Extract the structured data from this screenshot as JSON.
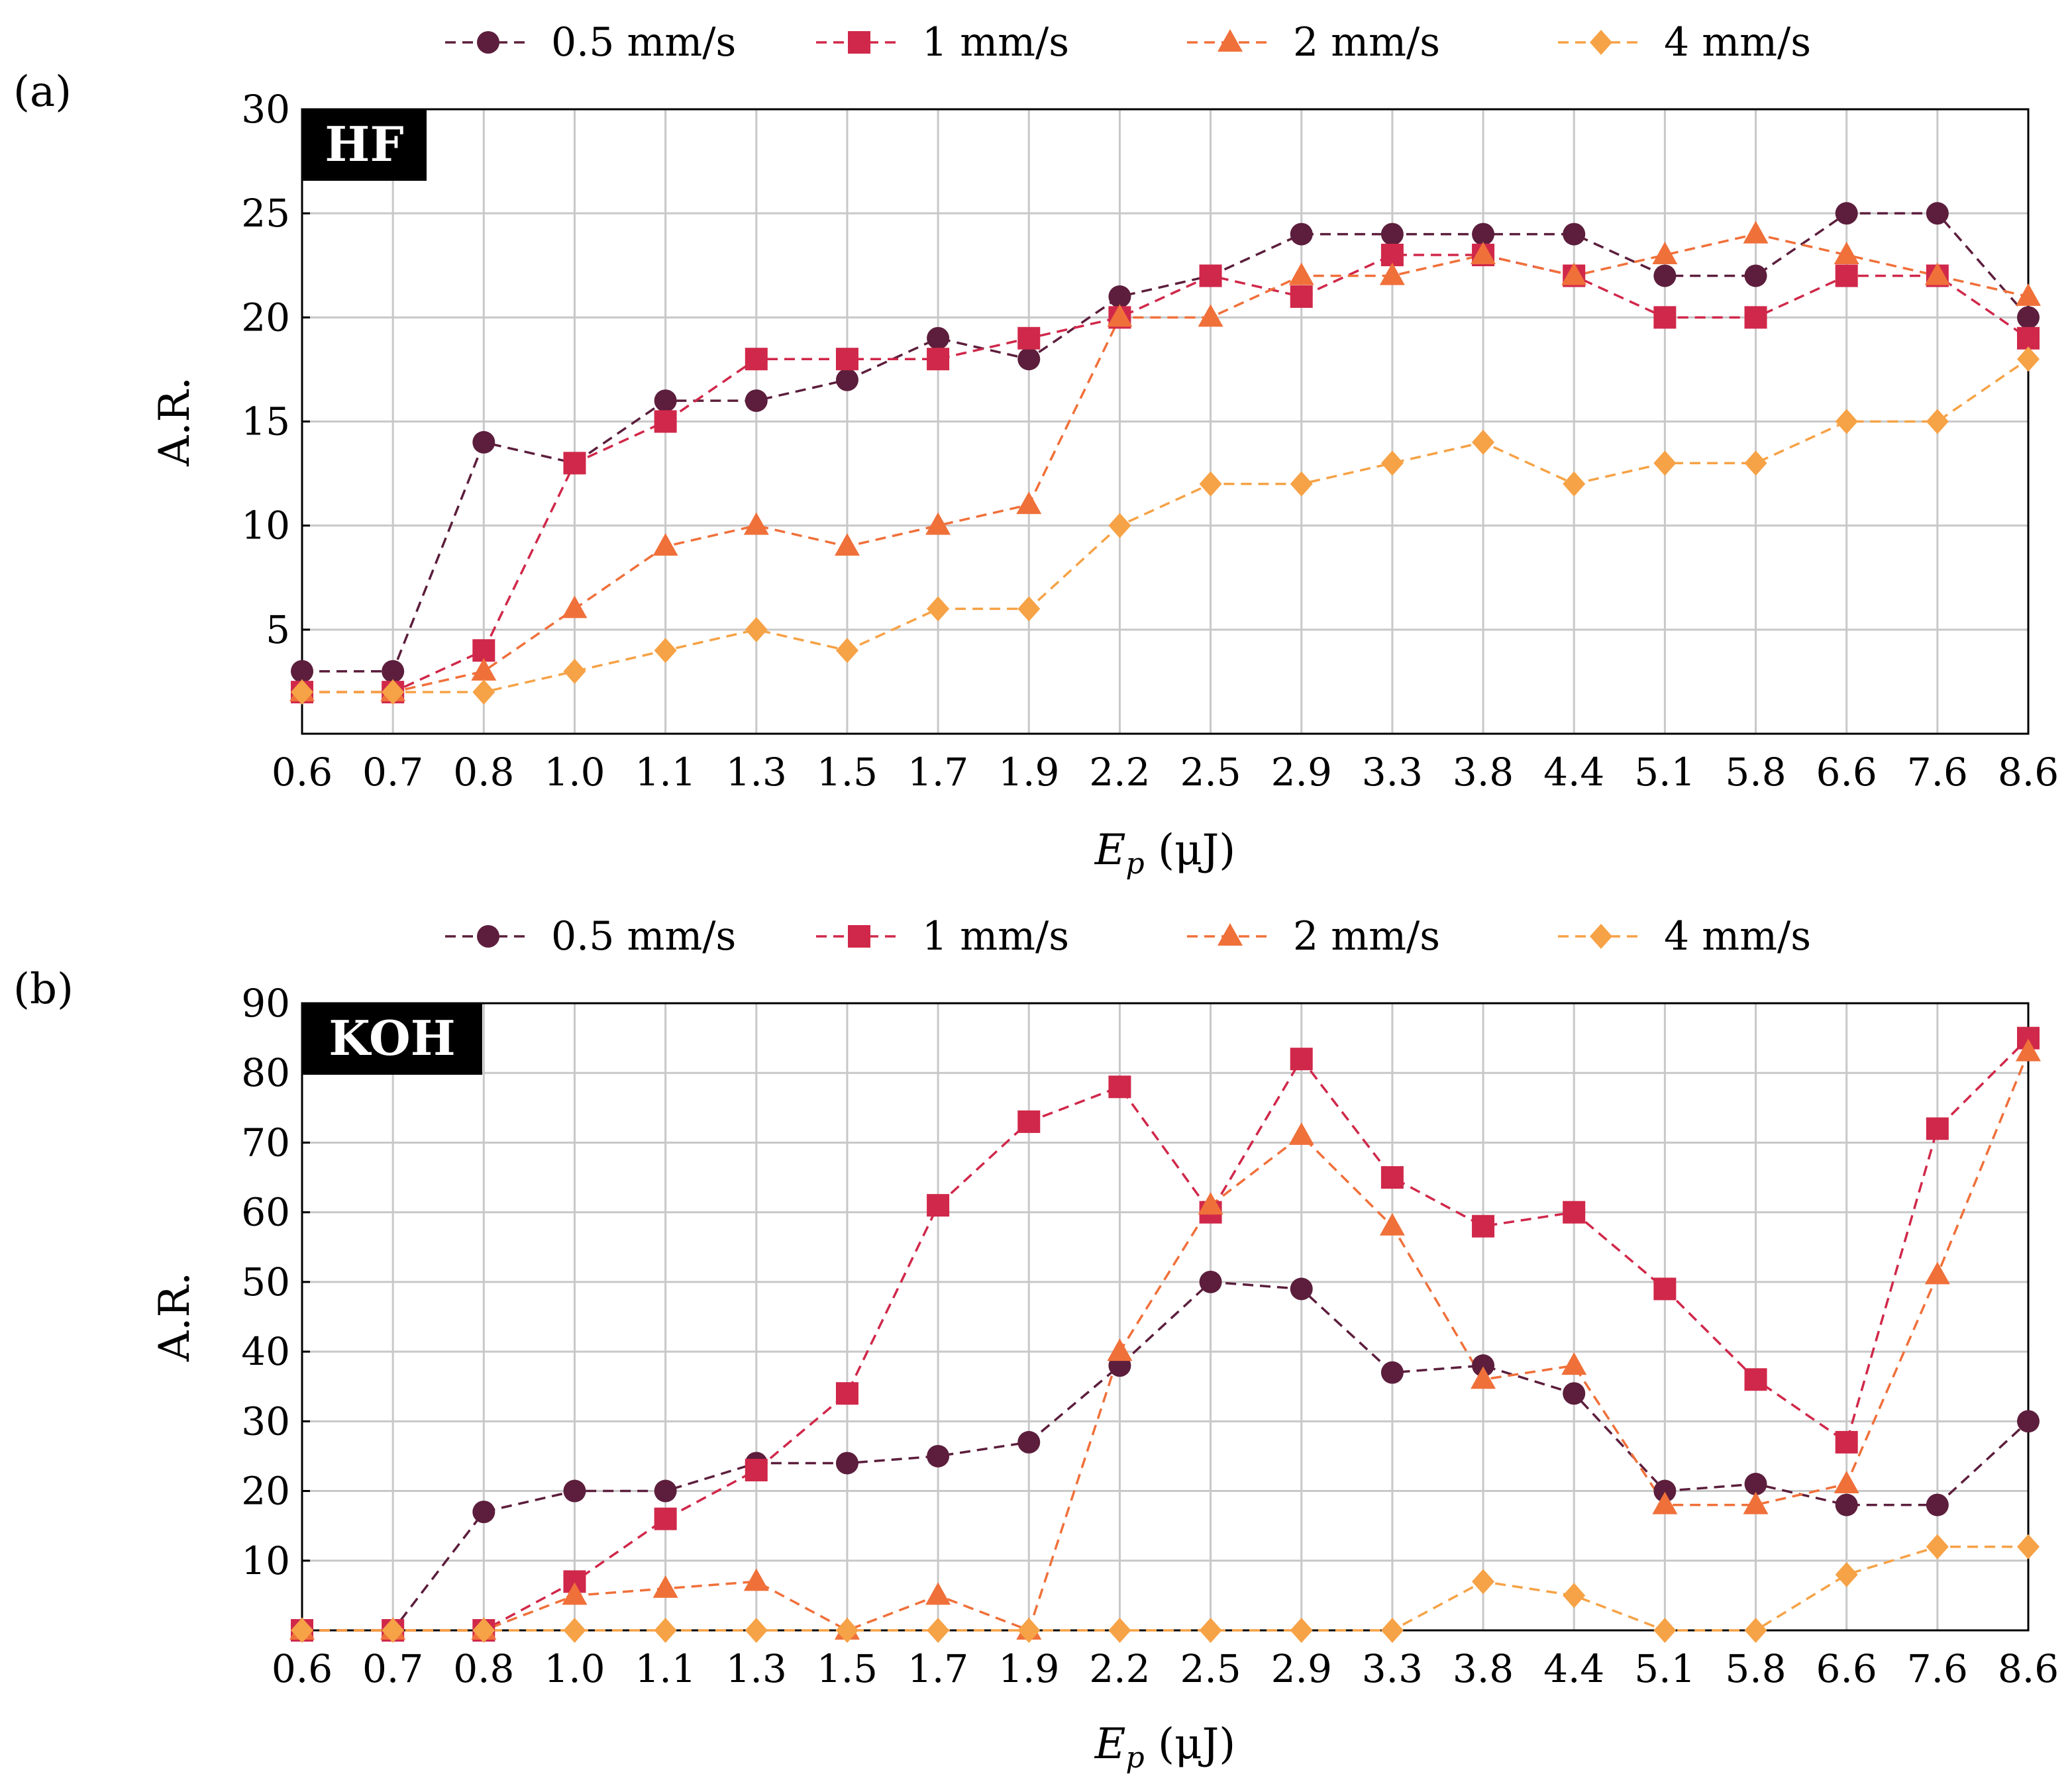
{
  "chart_data": [
    {
      "type": "line",
      "panel_label": "(a)",
      "tag": "HF",
      "xlabel": "E_p (μJ)",
      "xlabel_main": "E",
      "xlabel_sub": "p",
      "xlabel_unit": " (μJ)",
      "ylabel": "A.R.",
      "categories": [
        "0.6",
        "0.7",
        "0.8",
        "1.0",
        "1.1",
        "1.3",
        "1.5",
        "1.7",
        "1.9",
        "2.2",
        "2.5",
        "2.9",
        "3.3",
        "3.8",
        "4.4",
        "5.1",
        "5.8",
        "6.6",
        "7.6",
        "8.6"
      ],
      "ylim": [
        0,
        30
      ],
      "yticks": [
        5,
        10,
        15,
        20,
        25,
        30
      ],
      "grid": true,
      "legend_position": "top",
      "series": [
        {
          "name": "0.5 mm/s",
          "color": "#5c1e3c",
          "marker": "circle",
          "values": [
            3,
            3,
            14,
            13,
            16,
            16,
            17,
            19,
            18,
            21,
            22,
            24,
            24,
            24,
            24,
            22,
            22,
            25,
            25,
            20
          ]
        },
        {
          "name": "1 mm/s",
          "color": "#d0284a",
          "marker": "square",
          "values": [
            2,
            2,
            4,
            13,
            15,
            18,
            18,
            18,
            19,
            20,
            22,
            21,
            23,
            23,
            22,
            20,
            20,
            22,
            22,
            19
          ]
        },
        {
          "name": "2 mm/s",
          "color": "#f0703a",
          "marker": "triangle",
          "values": [
            2,
            2,
            3,
            6,
            9,
            10,
            9,
            10,
            11,
            20,
            20,
            22,
            22,
            23,
            22,
            23,
            24,
            23,
            22,
            21
          ]
        },
        {
          "name": "4 mm/s",
          "color": "#f6a246",
          "marker": "diamond",
          "values": [
            2,
            2,
            2,
            3,
            4,
            5,
            4,
            6,
            6,
            10,
            12,
            12,
            13,
            14,
            12,
            13,
            13,
            15,
            15,
            18
          ]
        }
      ]
    },
    {
      "type": "line",
      "panel_label": "(b)",
      "tag": "KOH",
      "xlabel": "E_p (μJ)",
      "xlabel_main": "E",
      "xlabel_sub": "p",
      "xlabel_unit": " (μJ)",
      "ylabel": "A.R.",
      "categories": [
        "0.6",
        "0.7",
        "0.8",
        "1.0",
        "1.1",
        "1.3",
        "1.5",
        "1.7",
        "1.9",
        "2.2",
        "2.5",
        "2.9",
        "3.3",
        "3.8",
        "4.4",
        "5.1",
        "5.8",
        "6.6",
        "7.6",
        "8.6"
      ],
      "ylim": [
        0,
        90
      ],
      "yticks": [
        10,
        20,
        30,
        40,
        50,
        60,
        70,
        80,
        90
      ],
      "grid": true,
      "legend_position": "top",
      "series": [
        {
          "name": "0.5 mm/s",
          "color": "#5c1e3c",
          "marker": "circle",
          "values": [
            0,
            0,
            17,
            20,
            20,
            24,
            24,
            25,
            27,
            38,
            50,
            49,
            37,
            38,
            34,
            20,
            21,
            18,
            18,
            30
          ]
        },
        {
          "name": "1 mm/s",
          "color": "#d0284a",
          "marker": "square",
          "values": [
            0,
            0,
            0,
            7,
            16,
            23,
            34,
            61,
            73,
            78,
            60,
            82,
            65,
            58,
            60,
            49,
            36,
            27,
            72,
            85
          ]
        },
        {
          "name": "2 mm/s",
          "color": "#f0703a",
          "marker": "triangle",
          "values": [
            0,
            0,
            0,
            5,
            6,
            7,
            0,
            5,
            0,
            40,
            61,
            71,
            58,
            36,
            38,
            18,
            18,
            21,
            51,
            83
          ]
        },
        {
          "name": "4 mm/s",
          "color": "#f6a246",
          "marker": "diamond",
          "values": [
            0,
            0,
            0,
            0,
            0,
            0,
            0,
            0,
            0,
            0,
            0,
            0,
            0,
            7,
            5,
            0,
            0,
            8,
            12,
            12
          ]
        }
      ]
    }
  ]
}
